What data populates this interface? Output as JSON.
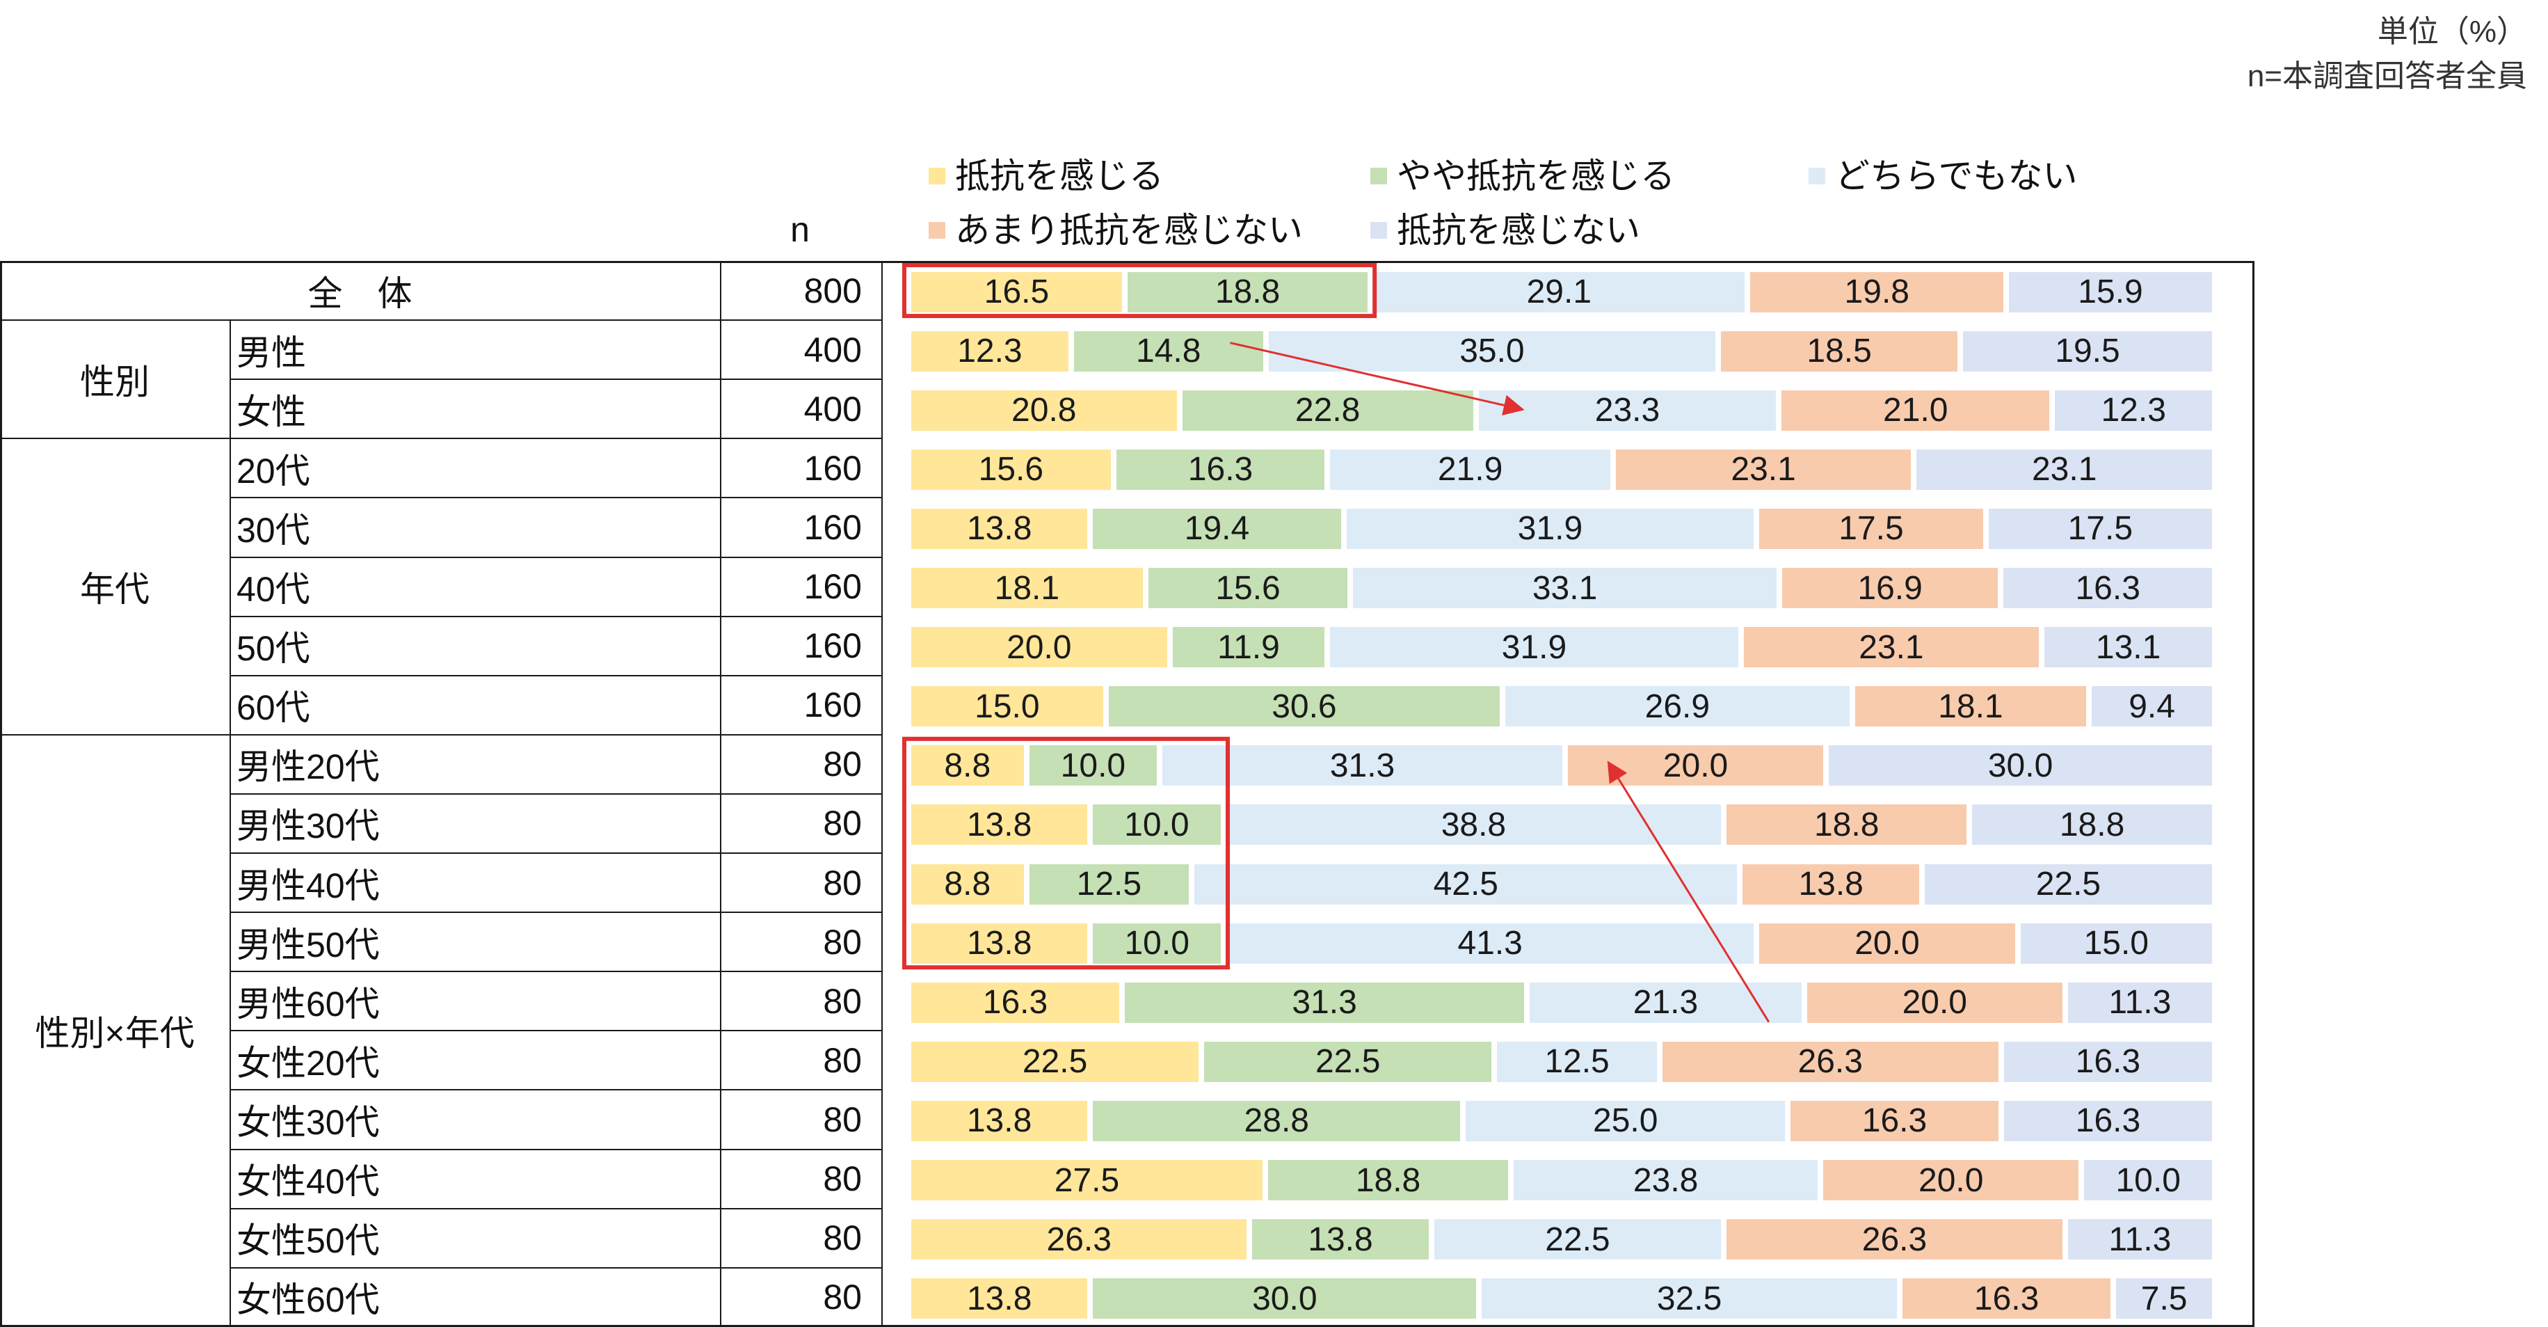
{
  "unit_label": "単位（%）",
  "base_label": "n=本調査回答者全員",
  "n_header": "n",
  "colors": {
    "series": [
      "#FFE699",
      "#C5E0B4",
      "#DDEBF7",
      "#F8CBAD",
      "#DAE3F3"
    ],
    "highlight": "#E03030",
    "grid": "#1a1a1a"
  },
  "groups": [
    {
      "label": "",
      "rows": [
        0
      ]
    },
    {
      "label": "性別",
      "rows": [
        1,
        2
      ]
    },
    {
      "label": "年代",
      "rows": [
        3,
        4,
        5,
        6,
        7
      ]
    },
    {
      "label": "性別×年代",
      "rows": [
        8,
        9,
        10,
        11,
        12,
        13,
        14,
        15,
        16,
        17
      ]
    }
  ],
  "chart_data": {
    "type": "bar",
    "orientation": "horizontal",
    "stacked": true,
    "unit": "%",
    "legend_position": "top",
    "series": [
      {
        "name": "抵抗を感じる",
        "values": [
          16.5,
          12.3,
          20.8,
          15.6,
          13.8,
          18.1,
          20.0,
          15.0,
          8.8,
          13.8,
          8.8,
          13.8,
          16.3,
          22.5,
          13.8,
          27.5,
          26.3,
          13.8
        ]
      },
      {
        "name": "やや抵抗を感じる",
        "values": [
          18.8,
          14.8,
          22.8,
          16.3,
          19.4,
          15.6,
          11.9,
          30.6,
          10.0,
          10.0,
          12.5,
          10.0,
          31.3,
          22.5,
          28.8,
          18.8,
          13.8,
          30.0
        ]
      },
      {
        "name": "どちらでもない",
        "values": [
          29.1,
          35.0,
          23.3,
          21.9,
          31.9,
          33.1,
          31.9,
          26.9,
          31.3,
          38.8,
          42.5,
          41.3,
          21.3,
          12.5,
          25.0,
          23.8,
          22.5,
          32.5
        ]
      },
      {
        "name": "あまり抵抗を感じない",
        "values": [
          19.8,
          18.5,
          21.0,
          23.1,
          17.5,
          16.9,
          23.1,
          18.1,
          20.0,
          18.8,
          13.8,
          20.0,
          20.0,
          26.3,
          16.3,
          20.0,
          26.3,
          16.3
        ]
      },
      {
        "name": "抵抗を感じない",
        "values": [
          15.9,
          19.5,
          12.3,
          23.1,
          17.5,
          16.3,
          13.1,
          9.4,
          30.0,
          18.8,
          22.5,
          15.0,
          11.3,
          16.3,
          16.3,
          10.0,
          11.3,
          7.5
        ]
      }
    ],
    "rows": [
      {
        "label": "全　体",
        "n": 800
      },
      {
        "label": "男性",
        "n": 400
      },
      {
        "label": "女性",
        "n": 400
      },
      {
        "label": "20代",
        "n": 160
      },
      {
        "label": "30代",
        "n": 160
      },
      {
        "label": "40代",
        "n": 160
      },
      {
        "label": "50代",
        "n": 160
      },
      {
        "label": "60代",
        "n": 160
      },
      {
        "label": "男性20代",
        "n": 80
      },
      {
        "label": "男性30代",
        "n": 80
      },
      {
        "label": "男性40代",
        "n": 80
      },
      {
        "label": "男性50代",
        "n": 80
      },
      {
        "label": "男性60代",
        "n": 80
      },
      {
        "label": "女性20代",
        "n": 80
      },
      {
        "label": "女性30代",
        "n": 80
      },
      {
        "label": "女性40代",
        "n": 80
      },
      {
        "label": "女性50代",
        "n": 80
      },
      {
        "label": "女性60代",
        "n": 80
      }
    ],
    "annotations": [
      {
        "type": "box",
        "rows": [
          0,
          0
        ],
        "series": [
          0,
          1
        ]
      },
      {
        "type": "box",
        "rows": [
          8,
          11
        ],
        "series": [
          0,
          1
        ]
      },
      {
        "type": "arrow",
        "from": {
          "row": 1,
          "boundary": 2
        },
        "to": {
          "row": 2,
          "boundary": 2
        }
      },
      {
        "type": "arrow",
        "from": {
          "row": 12,
          "boundary": 3
        },
        "to": {
          "row": 8,
          "boundary": 3
        }
      }
    ]
  }
}
